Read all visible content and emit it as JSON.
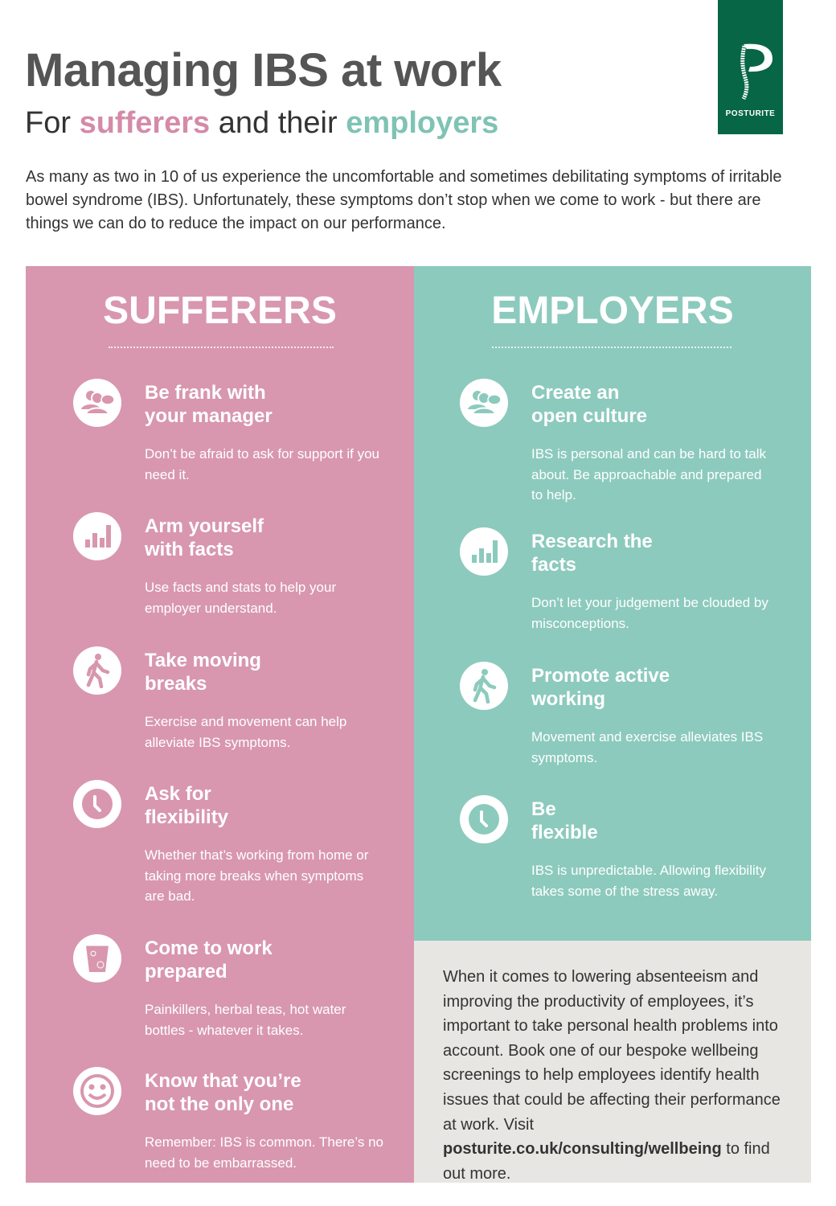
{
  "header": {
    "title": "Managing IBS at work",
    "subtitle_pre": "For ",
    "subtitle_a": "sufferers",
    "subtitle_mid": " and their ",
    "subtitle_b": "employers"
  },
  "logo": {
    "text": "POSTURITE",
    "color": "#066646"
  },
  "intro": "As many as two in 10 of us experience the uncomfortable and sometimes debilitating symptoms of irritable bowel syndrome (IBS). Unfortunately, these symptoms don’t stop when we come to work - but there are things we can do to reduce the impact on our performance.",
  "colors": {
    "pink": "#d897ae",
    "teal": "#8ccabd",
    "grey": "#e8e6e2"
  },
  "sufferers": {
    "heading": "SUFFERERS",
    "items": [
      {
        "icon": "people-chat-icon",
        "title1": "Be frank with",
        "title2": "your manager",
        "body": "Don’t be afraid to ask for support if you need it."
      },
      {
        "icon": "bar-chart-icon",
        "title1": "Arm yourself",
        "title2": "with facts",
        "body": "Use facts and stats to help your employer understand."
      },
      {
        "icon": "walking-icon",
        "title1": "Take moving",
        "title2": "breaks",
        "body": "Exercise and movement can help alleviate IBS symptoms."
      },
      {
        "icon": "clock-icon",
        "title1": "Ask for",
        "title2": "flexibility",
        "body": "Whether that’s working from home or taking more breaks when symptoms are bad."
      },
      {
        "icon": "drink-cup-icon",
        "title1": "Come to work",
        "title2": "prepared",
        "body": "Painkillers, herbal teas, hot water bottles - whatever it takes."
      },
      {
        "icon": "smiley-icon",
        "title1": "Know that you’re",
        "title2": "not the only one",
        "body": "Remember: IBS is common. There’s no need to be embarrassed."
      }
    ]
  },
  "employers": {
    "heading": "EMPLOYERS",
    "items": [
      {
        "icon": "people-chat-icon",
        "title1": "Create an",
        "title2": "open culture",
        "body": "IBS is personal and can be hard to talk about. Be approachable and prepared to help."
      },
      {
        "icon": "bar-chart-icon",
        "title1": "Research the",
        "title2": "facts",
        "body": "Don’t let your judgement be clouded by misconceptions."
      },
      {
        "icon": "walking-icon",
        "title1": "Promote active",
        "title2": "working",
        "body": "Movement and exercise alleviates IBS symptoms."
      },
      {
        "icon": "clock-icon",
        "title1": "Be",
        "title2": "flexible",
        "body": "IBS is unpredictable. Allowing flexibility takes some of the stress away."
      }
    ]
  },
  "cta": {
    "text": "When it comes to lowering absenteeism and improving the productivity of employees, it’s important to take personal health problems into account. Book one of our bespoke wellbeing screenings to help employees identify health issues that could be affecting their performance at work. Visit ",
    "link": "posturite.co.uk/consulting/wellbeing",
    "after": " to find out more."
  }
}
